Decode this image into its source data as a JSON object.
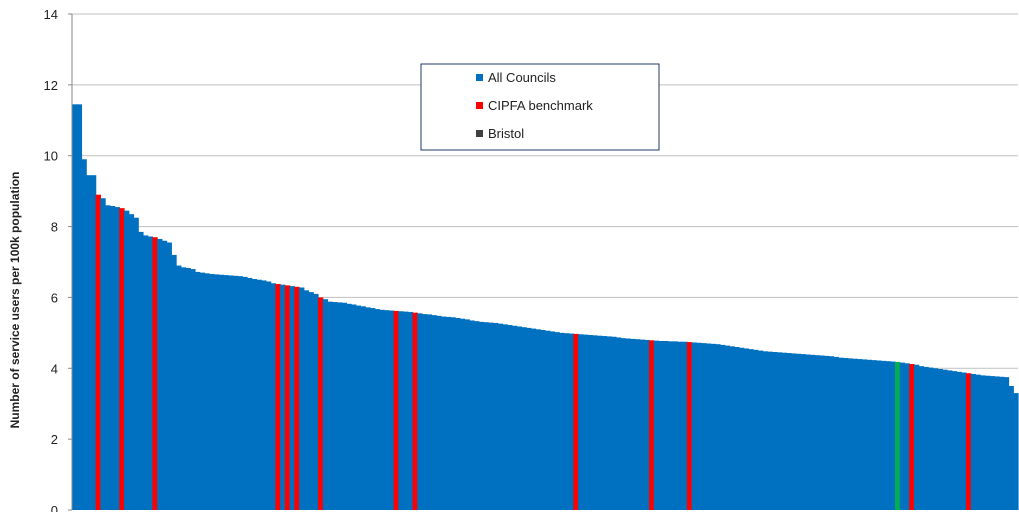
{
  "chart_data": {
    "type": "bar",
    "title": "",
    "xlabel": "",
    "ylabel": "Number of service users per 100k population",
    "ylim": [
      0,
      14
    ],
    "yticks": [
      0,
      2,
      4,
      6,
      8,
      10,
      12,
      14
    ],
    "grid": true,
    "legend_position": "top-center",
    "legend": [
      {
        "name": "All Councils",
        "color": "#0070C0"
      },
      {
        "name": "CIPFA benchmark",
        "color": "#FF0000"
      },
      {
        "name": "Bristol",
        "color": "#404040"
      }
    ],
    "highlight_color": "#00B050",
    "values": [
      11.45,
      11.45,
      9.9,
      9.45,
      9.45,
      8.9,
      8.8,
      8.6,
      8.58,
      8.55,
      8.52,
      8.45,
      8.35,
      8.25,
      7.85,
      7.75,
      7.72,
      7.7,
      7.65,
      7.6,
      7.55,
      7.2,
      6.9,
      6.85,
      6.83,
      6.8,
      6.72,
      6.7,
      6.68,
      6.66,
      6.65,
      6.64,
      6.63,
      6.62,
      6.61,
      6.6,
      6.58,
      6.55,
      6.52,
      6.5,
      6.48,
      6.45,
      6.4,
      6.38,
      6.36,
      6.34,
      6.32,
      6.3,
      6.28,
      6.2,
      6.15,
      6.1,
      6.0,
      5.95,
      5.88,
      5.87,
      5.86,
      5.85,
      5.82,
      5.8,
      5.77,
      5.75,
      5.72,
      5.7,
      5.67,
      5.65,
      5.64,
      5.63,
      5.62,
      5.61,
      5.6,
      5.59,
      5.57,
      5.55,
      5.53,
      5.52,
      5.5,
      5.48,
      5.46,
      5.45,
      5.44,
      5.42,
      5.4,
      5.38,
      5.35,
      5.33,
      5.31,
      5.3,
      5.29,
      5.28,
      5.26,
      5.24,
      5.22,
      5.2,
      5.18,
      5.16,
      5.14,
      5.12,
      5.1,
      5.08,
      5.06,
      5.04,
      5.02,
      5.0,
      4.99,
      4.98,
      4.97,
      4.96,
      4.95,
      4.94,
      4.93,
      4.92,
      4.91,
      4.9,
      4.89,
      4.87,
      4.85,
      4.84,
      4.83,
      4.82,
      4.81,
      4.8,
      4.79,
      4.78,
      4.77,
      4.77,
      4.76,
      4.76,
      4.75,
      4.75,
      4.74,
      4.73,
      4.72,
      4.71,
      4.7,
      4.69,
      4.68,
      4.66,
      4.64,
      4.62,
      4.6,
      4.58,
      4.56,
      4.54,
      4.52,
      4.5,
      4.48,
      4.47,
      4.46,
      4.45,
      4.44,
      4.43,
      4.42,
      4.41,
      4.4,
      4.39,
      4.38,
      4.37,
      4.36,
      4.35,
      4.34,
      4.32,
      4.3,
      4.29,
      4.28,
      4.27,
      4.26,
      4.25,
      4.24,
      4.23,
      4.22,
      4.21,
      4.2,
      4.19,
      4.18,
      4.16,
      4.14,
      4.12,
      4.1,
      4.06,
      4.04,
      4.02,
      4.0,
      3.98,
      3.96,
      3.94,
      3.92,
      3.9,
      3.88,
      3.86,
      3.84,
      3.82,
      3.8,
      3.79,
      3.78,
      3.77,
      3.76,
      3.75,
      3.5,
      3.3
    ],
    "categories_note": "",
    "cipfa_indices": [
      5,
      10,
      17,
      43,
      45,
      47,
      52,
      68,
      72,
      106,
      122,
      130,
      177,
      189
    ],
    "bristol_index": 174
  }
}
